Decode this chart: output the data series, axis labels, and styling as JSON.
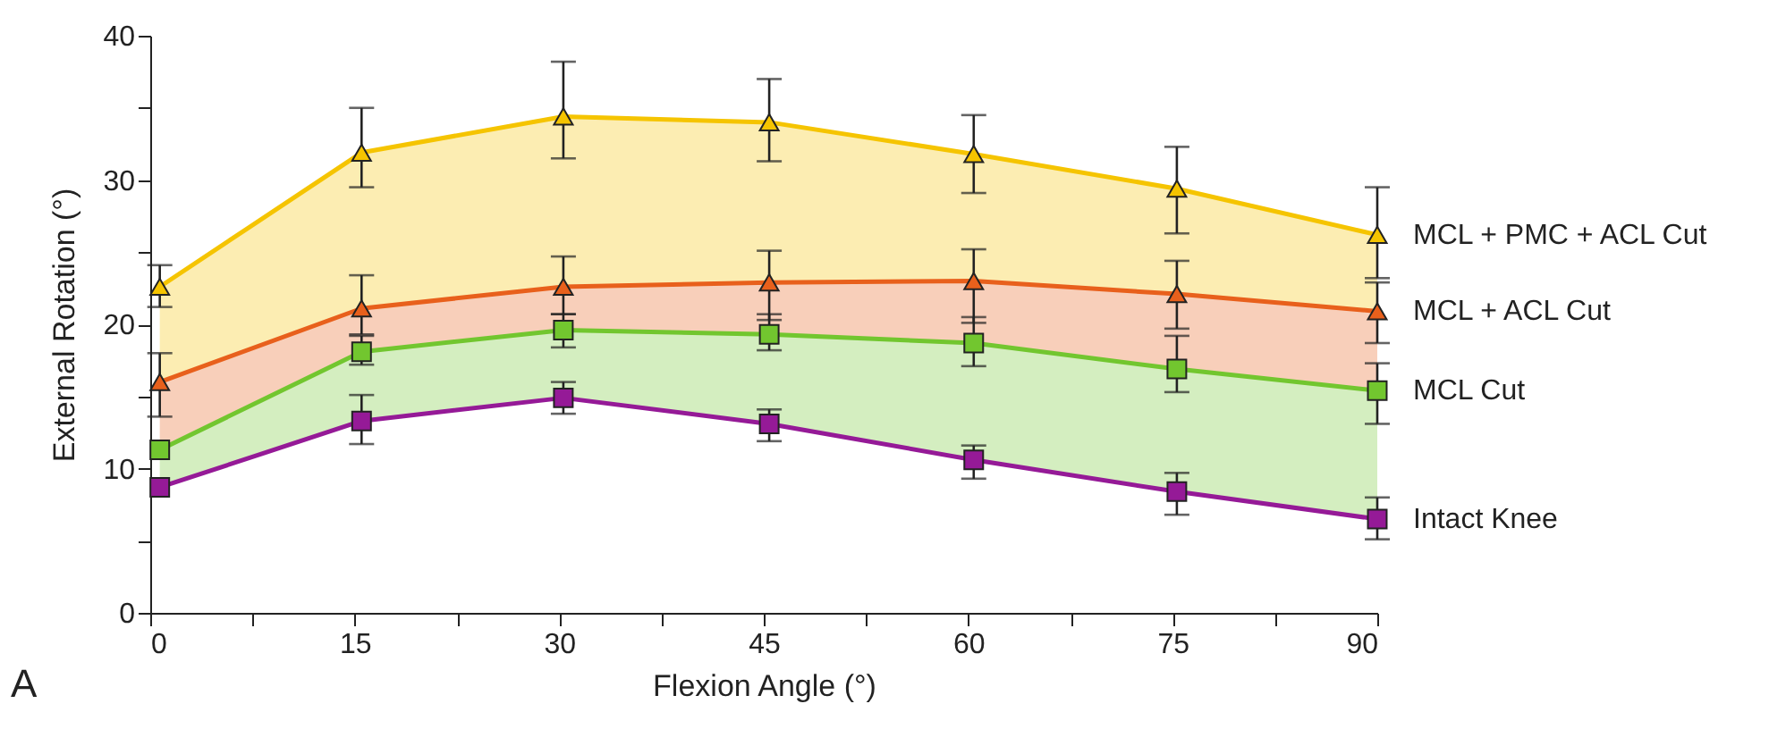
{
  "chart_data": {
    "type": "line",
    "xlabel": "Flexion Angle (°)",
    "ylabel": "External Rotation (°)",
    "x": [
      0.7,
      15.5,
      30.3,
      45.4,
      60.4,
      75.3,
      90
    ],
    "xlim": [
      0,
      90
    ],
    "xticks": [
      0,
      {
        "value": 7.5,
        "label": null
      },
      15,
      {
        "value": 22.5,
        "label": null
      },
      30,
      {
        "value": 37.5,
        "label": null
      },
      45,
      {
        "value": 52.5,
        "label": null
      },
      60,
      {
        "value": 67.5,
        "label": null
      },
      75,
      {
        "value": 82.5,
        "label": null
      },
      90
    ],
    "ylim": [
      0,
      40
    ],
    "yticks": [
      0,
      {
        "value": 5,
        "label": null
      },
      10,
      {
        "value": 15,
        "label": null
      },
      20,
      {
        "value": 25,
        "label": null
      },
      30,
      {
        "value": 35,
        "label": null
      },
      40
    ],
    "grid": false,
    "line_style": "solid",
    "annotations": [
      "A"
    ],
    "series": [
      {
        "name": "MCL + PMC + ACL Cut",
        "color": "#f5c400",
        "marker": "triangle",
        "values": [
          22.6,
          31.9,
          34.4,
          34.0,
          31.8,
          29.4,
          26.2
        ],
        "lower": [
          16.0,
          21.1,
          22.6,
          22.9,
          23.0,
          22.1,
          20.9
        ],
        "upper": [
          22.6,
          31.9,
          34.4,
          34.0,
          31.8,
          29.4,
          26.2
        ],
        "errors": [
          [
            21.2,
            24.1
          ],
          [
            29.5,
            35.0
          ],
          [
            31.5,
            38.2
          ],
          [
            31.3,
            37.0
          ],
          [
            29.1,
            34.5
          ],
          [
            26.3,
            32.3
          ],
          [
            23.2,
            29.5
          ]
        ]
      },
      {
        "name": "MCL + ACL Cut",
        "color": "#e8601c",
        "marker": "triangle",
        "values": [
          16.0,
          21.1,
          22.6,
          22.9,
          23.0,
          22.1,
          20.9
        ],
        "lower": [
          11.3,
          18.1,
          19.6,
          19.3,
          18.7,
          16.9,
          15.4
        ],
        "upper": [
          16.0,
          21.1,
          22.6,
          22.9,
          23.0,
          22.1,
          20.9
        ],
        "errors": [
          [
            13.6,
            18.0
          ],
          [
            19.3,
            23.4
          ],
          [
            20.7,
            24.7
          ],
          [
            20.3,
            25.1
          ],
          [
            20.1,
            25.2
          ],
          [
            19.7,
            24.4
          ],
          [
            18.7,
            22.9
          ]
        ]
      },
      {
        "name": "MCL Cut",
        "color": "#72c62f",
        "marker": "square",
        "values": [
          11.3,
          18.1,
          19.6,
          19.3,
          18.7,
          16.9,
          15.4
        ],
        "lower": [
          8.7,
          13.3,
          14.9,
          13.1,
          10.6,
          8.4,
          6.5
        ],
        "upper": [
          11.3,
          18.1,
          19.6,
          19.3,
          18.7,
          16.9,
          15.4
        ],
        "errors": [
          null,
          [
            17.2,
            19.2
          ],
          [
            18.4,
            20.7
          ],
          [
            18.2,
            20.7
          ],
          [
            17.1,
            20.5
          ],
          [
            15.3,
            19.2
          ],
          [
            13.1,
            17.3
          ]
        ]
      },
      {
        "name": "Intact Knee",
        "color": "#951a97",
        "marker": "square",
        "values": [
          8.7,
          13.3,
          14.9,
          13.1,
          10.6,
          8.4,
          6.5
        ],
        "errors": [
          null,
          [
            11.7,
            15.1
          ],
          [
            13.8,
            16.0
          ],
          [
            11.9,
            14.1
          ],
          [
            9.3,
            11.6
          ],
          [
            6.8,
            9.7
          ],
          [
            5.1,
            8.0
          ]
        ]
      }
    ]
  }
}
